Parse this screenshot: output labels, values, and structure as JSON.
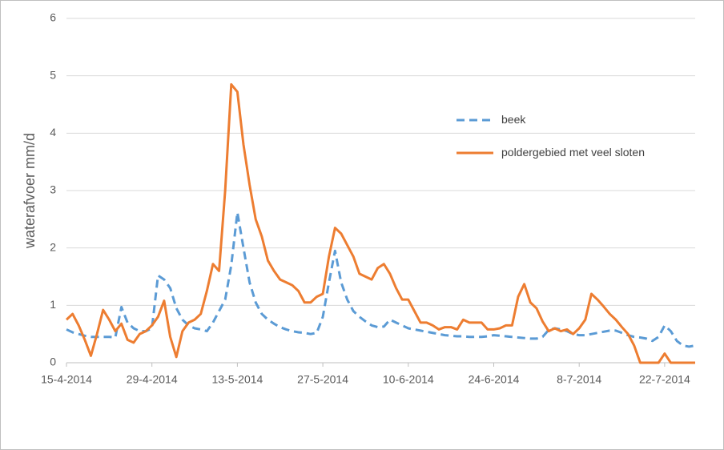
{
  "chart_data": {
    "type": "line",
    "y_label": "waterafvoer mm/d",
    "x": [
      "2014-04-15",
      "2014-04-16",
      "2014-04-17",
      "2014-04-18",
      "2014-04-19",
      "2014-04-20",
      "2014-04-21",
      "2014-04-22",
      "2014-04-23",
      "2014-04-24",
      "2014-04-25",
      "2014-04-26",
      "2014-04-27",
      "2014-04-28",
      "2014-04-29",
      "2014-04-30",
      "2014-05-01",
      "2014-05-02",
      "2014-05-03",
      "2014-05-04",
      "2014-05-05",
      "2014-05-06",
      "2014-05-07",
      "2014-05-08",
      "2014-05-09",
      "2014-05-10",
      "2014-05-11",
      "2014-05-12",
      "2014-05-13",
      "2014-05-14",
      "2014-05-15",
      "2014-05-16",
      "2014-05-17",
      "2014-05-18",
      "2014-05-19",
      "2014-05-20",
      "2014-05-21",
      "2014-05-22",
      "2014-05-23",
      "2014-05-24",
      "2014-05-25",
      "2014-05-26",
      "2014-05-27",
      "2014-05-28",
      "2014-05-29",
      "2014-05-30",
      "2014-05-31",
      "2014-06-01",
      "2014-06-02",
      "2014-06-03",
      "2014-06-04",
      "2014-06-05",
      "2014-06-06",
      "2014-06-07",
      "2014-06-08",
      "2014-06-09",
      "2014-06-10",
      "2014-06-11",
      "2014-06-12",
      "2014-06-13",
      "2014-06-14",
      "2014-06-15",
      "2014-06-16",
      "2014-06-17",
      "2014-06-18",
      "2014-06-19",
      "2014-06-20",
      "2014-06-21",
      "2014-06-22",
      "2014-06-23",
      "2014-06-24",
      "2014-06-25",
      "2014-06-26",
      "2014-06-27",
      "2014-06-28",
      "2014-06-29",
      "2014-06-30",
      "2014-07-01",
      "2014-07-02",
      "2014-07-03",
      "2014-07-04",
      "2014-07-05",
      "2014-07-06",
      "2014-07-07",
      "2014-07-08",
      "2014-07-09",
      "2014-07-10",
      "2014-07-11",
      "2014-07-12",
      "2014-07-13",
      "2014-07-14",
      "2014-07-15",
      "2014-07-16",
      "2014-07-17",
      "2014-07-18",
      "2014-07-19",
      "2014-07-20",
      "2014-07-21",
      "2014-07-22",
      "2014-07-23",
      "2014-07-24",
      "2014-07-25",
      "2014-07-26",
      "2014-07-27"
    ],
    "series": [
      {
        "name": "beek",
        "color": "#5b9bd5",
        "dashed": true,
        "values": [
          0.58,
          0.53,
          0.5,
          0.47,
          0.45,
          0.45,
          0.45,
          0.45,
          0.44,
          0.97,
          0.7,
          0.6,
          0.55,
          0.55,
          0.6,
          1.52,
          1.45,
          1.3,
          0.95,
          0.75,
          0.65,
          0.6,
          0.58,
          0.55,
          0.7,
          0.9,
          1.1,
          1.7,
          2.62,
          2.0,
          1.4,
          1.05,
          0.85,
          0.75,
          0.68,
          0.62,
          0.58,
          0.55,
          0.53,
          0.52,
          0.5,
          0.52,
          0.8,
          1.4,
          1.95,
          1.4,
          1.1,
          0.9,
          0.8,
          0.72,
          0.65,
          0.62,
          0.63,
          0.75,
          0.7,
          0.65,
          0.6,
          0.58,
          0.56,
          0.54,
          0.52,
          0.5,
          0.48,
          0.47,
          0.46,
          0.46,
          0.45,
          0.45,
          0.45,
          0.46,
          0.48,
          0.47,
          0.46,
          0.45,
          0.44,
          0.43,
          0.42,
          0.42,
          0.45,
          0.57,
          0.6,
          0.58,
          0.55,
          0.5,
          0.48,
          0.48,
          0.5,
          0.52,
          0.54,
          0.56,
          0.56,
          0.52,
          0.48,
          0.45,
          0.44,
          0.42,
          0.38,
          0.45,
          0.65,
          0.55,
          0.38,
          0.3,
          0.28,
          0.3
        ]
      },
      {
        "name": "poldergebied met veel sloten",
        "color": "#ed7d31",
        "dashed": false,
        "values": [
          0.75,
          0.85,
          0.65,
          0.4,
          0.12,
          0.5,
          0.92,
          0.75,
          0.55,
          0.68,
          0.4,
          0.35,
          0.5,
          0.55,
          0.65,
          0.8,
          1.08,
          0.45,
          0.1,
          0.55,
          0.7,
          0.75,
          0.85,
          1.25,
          1.72,
          1.6,
          3.0,
          4.85,
          4.72,
          3.8,
          3.1,
          2.5,
          2.2,
          1.78,
          1.6,
          1.45,
          1.4,
          1.35,
          1.25,
          1.05,
          1.05,
          1.15,
          1.2,
          1.85,
          2.35,
          2.25,
          2.05,
          1.85,
          1.55,
          1.5,
          1.45,
          1.65,
          1.72,
          1.55,
          1.3,
          1.1,
          1.1,
          0.9,
          0.7,
          0.7,
          0.65,
          0.58,
          0.62,
          0.62,
          0.58,
          0.75,
          0.7,
          0.7,
          0.7,
          0.58,
          0.58,
          0.6,
          0.65,
          0.65,
          1.15,
          1.37,
          1.05,
          0.95,
          0.72,
          0.55,
          0.6,
          0.55,
          0.58,
          0.5,
          0.6,
          0.75,
          1.2,
          1.1,
          0.98,
          0.85,
          0.75,
          0.62,
          0.5,
          0.3,
          0,
          0,
          0,
          0,
          0.16,
          0,
          0,
          0,
          0,
          0
        ]
      }
    ],
    "xlim": [
      "2014-04-15",
      "2014-07-27"
    ],
    "xticks": [
      {
        "value": "2014-04-15",
        "label": "15-4-2014"
      },
      {
        "value": "2014-04-29",
        "label": "29-4-2014"
      },
      {
        "value": "2014-05-13",
        "label": "13-5-2014"
      },
      {
        "value": "2014-05-27",
        "label": "27-5-2014"
      },
      {
        "value": "2014-06-10",
        "label": "10-6-2014"
      },
      {
        "value": "2014-06-24",
        "label": "24-6-2014"
      },
      {
        "value": "2014-07-08",
        "label": "8-7-2014"
      },
      {
        "value": "2014-07-22",
        "label": "22-7-2014"
      }
    ],
    "ylim": [
      0,
      6
    ],
    "yticks": [
      0,
      1,
      2,
      3,
      4,
      5,
      6
    ],
    "grid": true
  }
}
